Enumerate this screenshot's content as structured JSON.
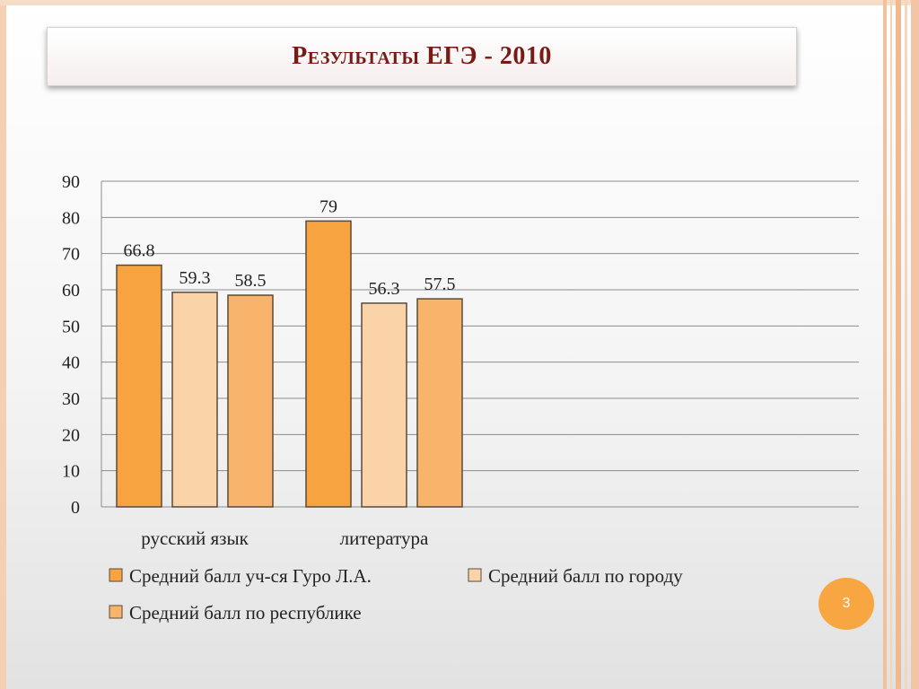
{
  "title": "Результаты ЕГЭ - 2010",
  "page_number": "3",
  "colors": {
    "title": "#7a1a14",
    "badge": "#f7a642",
    "border_stripes": "#f2c5a3"
  },
  "chart_data": {
    "type": "bar",
    "title": "",
    "xlabel": "",
    "ylabel": "",
    "categories": [
      "русский язык",
      "литература"
    ],
    "series": [
      {
        "name": "Средний балл уч-ся Гуро Л.А.",
        "values": [
          66.8,
          79
        ],
        "labels": [
          "66.8",
          "79"
        ],
        "color": "#f7a340"
      },
      {
        "name": "Средний балл по городу",
        "values": [
          59.3,
          56.3
        ],
        "labels": [
          "59.3",
          "56.3"
        ],
        "color": "#fad4a8"
      },
      {
        "name": "Средний балл по республике",
        "values": [
          58.5,
          57.5
        ],
        "labels": [
          "58.5",
          "57.5"
        ],
        "color": "#f8b46a"
      }
    ],
    "ylim": [
      0,
      90
    ],
    "yticks": [
      "0",
      "10",
      "20",
      "30",
      "40",
      "50",
      "60",
      "70",
      "80",
      "90"
    ],
    "grid": true,
    "legend": "bottom"
  }
}
